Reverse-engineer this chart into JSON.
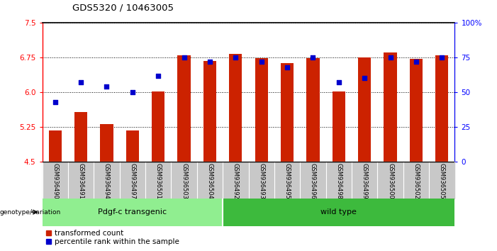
{
  "title": "GDS5320 / 10463005",
  "samples": [
    "GSM936490",
    "GSM936491",
    "GSM936494",
    "GSM936497",
    "GSM936501",
    "GSM936503",
    "GSM936504",
    "GSM936492",
    "GSM936493",
    "GSM936495",
    "GSM936496",
    "GSM936498",
    "GSM936499",
    "GSM936500",
    "GSM936502",
    "GSM936505"
  ],
  "red_values": [
    5.18,
    5.57,
    5.32,
    5.18,
    6.02,
    6.79,
    6.67,
    6.83,
    6.73,
    6.62,
    6.73,
    6.02,
    6.75,
    6.85,
    6.72,
    6.8
  ],
  "blue_pct": [
    43,
    57,
    54,
    50,
    62,
    75,
    72,
    75,
    72,
    68,
    75,
    57,
    60,
    75,
    72,
    75
  ],
  "ylim_left": [
    4.5,
    7.5
  ],
  "yticks_left": [
    4.5,
    5.25,
    6.0,
    6.75,
    7.5
  ],
  "ylim_right": [
    0,
    100
  ],
  "yticks_right": [
    0,
    25,
    50,
    75,
    100
  ],
  "ytick_labels_right": [
    "0",
    "25",
    "50",
    "75",
    "100%"
  ],
  "group1_label": "Pdgf-c transgenic",
  "group2_label": "wild type",
  "group1_count": 7,
  "group2_count": 9,
  "genotype_label": "genotype/variation",
  "legend1": "transformed count",
  "legend2": "percentile rank within the sample",
  "bar_color": "#cc2200",
  "dot_color": "#0000cc",
  "group1_color": "#90ee90",
  "group2_color": "#3dba3d",
  "bg_color": "#ffffff",
  "tick_area_color": "#c8c8c8"
}
